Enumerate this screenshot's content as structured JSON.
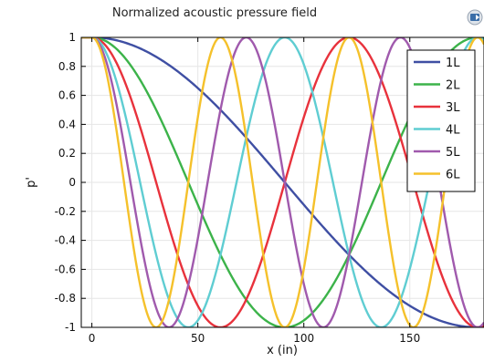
{
  "chart_data": {
    "type": "line",
    "title": "Normalized acoustic pressure field",
    "xlabel": "x (in)",
    "ylabel": "p'",
    "xlim": [
      -5,
      185
    ],
    "ylim": [
      -1,
      1
    ],
    "xticks": [
      0,
      50,
      100,
      150
    ],
    "yticks": [
      1,
      0.8,
      0.6,
      0.4,
      0.2,
      0,
      -0.2,
      -0.4,
      -0.6,
      -0.8,
      -1
    ],
    "grid": true,
    "legend_position": "top-right",
    "series": [
      {
        "name": "1L",
        "color": "#3f4fa3",
        "n": 1,
        "x": [
          -5,
          0,
          5,
          10,
          15,
          20,
          25,
          30,
          35,
          40,
          45,
          50,
          55,
          60,
          65,
          70,
          75,
          80,
          85,
          90,
          95,
          100,
          105,
          110,
          115,
          120,
          125,
          130,
          135,
          140,
          145,
          150,
          155,
          160,
          165,
          170,
          175,
          180,
          185
        ],
        "y": [
          1,
          1,
          0.99,
          0.98,
          0.95,
          0.92,
          0.88,
          0.83,
          0.77,
          0.71,
          0.64,
          0.56,
          0.49,
          0.4,
          0.32,
          0.23,
          0.14,
          0.05,
          -0.05,
          -0.14,
          -0.23,
          -0.32,
          -0.4,
          -0.49,
          -0.56,
          -0.64,
          -0.71,
          -0.77,
          -0.83,
          -0.88,
          -0.92,
          -0.95,
          -0.98,
          -0.99,
          -1,
          -1,
          -0.99,
          -0.98,
          -0.95
        ]
      },
      {
        "name": "2L",
        "color": "#3cb34a",
        "n": 2,
        "x": [
          -5,
          0,
          5,
          10,
          15,
          20,
          25,
          30,
          35,
          40,
          45,
          50,
          55,
          60,
          65,
          70,
          75,
          80,
          85,
          90,
          95,
          100,
          105,
          110,
          115,
          120,
          125,
          130,
          135,
          140,
          145,
          150,
          155,
          160,
          165,
          170,
          175,
          180,
          185
        ],
        "y": [
          1,
          1,
          0.97,
          0.9,
          0.8,
          0.66,
          0.5,
          0.32,
          0.13,
          -0.06,
          -0.25,
          -0.43,
          -0.59,
          -0.74,
          -0.85,
          -0.93,
          -0.98,
          -1,
          -0.98,
          -0.93,
          -0.85,
          -0.74,
          -0.59,
          -0.43,
          -0.25,
          -0.06,
          0.13,
          0.32,
          0.5,
          0.66,
          0.8,
          0.9,
          0.97,
          1,
          0.99,
          0.94,
          0.86,
          0.75,
          0.61
        ]
      },
      {
        "name": "3L",
        "color": "#e8323c",
        "n": 3,
        "x": [
          -5,
          0,
          5,
          10,
          15,
          20,
          25,
          30,
          35,
          40,
          45,
          50,
          55,
          60,
          65,
          70,
          75,
          80,
          85,
          90,
          95,
          100,
          105,
          110,
          115,
          120,
          125,
          130,
          135,
          140,
          145,
          150,
          155,
          160,
          165,
          170,
          175,
          180,
          185
        ],
        "y": [
          1,
          1,
          0.93,
          0.77,
          0.54,
          0.27,
          -0.02,
          -0.31,
          -0.57,
          -0.79,
          -0.94,
          -1,
          -0.97,
          -0.85,
          -0.66,
          -0.41,
          -0.12,
          0.17,
          0.45,
          0.69,
          0.87,
          0.97,
          1,
          0.93,
          0.77,
          0.54,
          0.27,
          -0.02,
          -0.31,
          -0.57,
          -0.79,
          -0.94,
          -1,
          -0.97,
          -0.85,
          -0.66,
          -0.41,
          -0.12,
          0.17
        ]
      },
      {
        "name": "4L",
        "color": "#5fcdd2",
        "n": 4,
        "x": [
          -5,
          0,
          5,
          10,
          15,
          20,
          25,
          30,
          35,
          40,
          45,
          50,
          55,
          60,
          65,
          70,
          75,
          80,
          85,
          90,
          95,
          100,
          105,
          110,
          115,
          120,
          125,
          130,
          135,
          140,
          145,
          150,
          155,
          160,
          165,
          170,
          175,
          180,
          185
        ],
        "y": [
          1,
          1,
          0.9,
          0.6,
          0.2,
          -0.23,
          -0.62,
          -0.9,
          -1,
          -0.93,
          -0.68,
          -0.29,
          0.14,
          0.55,
          0.85,
          0.99,
          0.97,
          0.76,
          0.41,
          -0.01,
          -0.43,
          -0.78,
          -0.98,
          -0.99,
          -0.8,
          -0.45,
          -0.03,
          0.4,
          0.75,
          0.97,
          1,
          0.83,
          0.51,
          0.09,
          -0.35,
          -0.72,
          -0.95,
          -1,
          -0.87
        ]
      },
      {
        "name": "5L",
        "color": "#a05aad",
        "n": 5,
        "x": [
          -5,
          0,
          5,
          10,
          15,
          20,
          25,
          30,
          35,
          40,
          45,
          50,
          55,
          60,
          65,
          70,
          75,
          80,
          85,
          90,
          95,
          100,
          105,
          110,
          115,
          120,
          125,
          130,
          135,
          140,
          145,
          150,
          155,
          160,
          165,
          170,
          175,
          180,
          185
        ],
        "y": [
          1,
          1,
          0.84,
          0.4,
          -0.16,
          -0.67,
          -0.96,
          -0.95,
          -0.63,
          -0.1,
          0.45,
          0.87,
          1,
          0.79,
          0.32,
          -0.24,
          -0.73,
          -0.99,
          -0.92,
          -0.56,
          -0.02,
          0.52,
          0.9,
          0.99,
          0.73,
          0.24,
          -0.32,
          -0.79,
          -1,
          -0.87,
          -0.45,
          0.1,
          0.63,
          0.95,
          0.96,
          0.67,
          0.16,
          -0.4,
          -0.84
        ]
      },
      {
        "name": "6L",
        "color": "#f5c12b",
        "n": 6,
        "x": [
          -5,
          0,
          5,
          10,
          15,
          20,
          25,
          30,
          35,
          40,
          45,
          50,
          55,
          60,
          65,
          70,
          75,
          80,
          85,
          90,
          95,
          100,
          105,
          110,
          115,
          120,
          125,
          130,
          135,
          140,
          145,
          150,
          155,
          160,
          165,
          170,
          175,
          180,
          185
        ],
        "y": [
          1,
          1,
          0.78,
          0.16,
          -0.5,
          -0.93,
          -0.93,
          -0.48,
          0.18,
          0.77,
          1,
          0.77,
          0.18,
          -0.48,
          -0.93,
          -0.93,
          -0.5,
          0.16,
          0.76,
          1,
          0.78,
          0.2,
          -0.46,
          -0.92,
          -0.94,
          -0.51,
          0.14,
          0.75,
          1,
          0.79,
          0.22,
          -0.45,
          -0.91,
          -0.94,
          -0.53,
          0.12,
          0.74,
          1,
          0.8
        ]
      }
    ]
  },
  "toolbar": {
    "icon": "camera-icon"
  }
}
